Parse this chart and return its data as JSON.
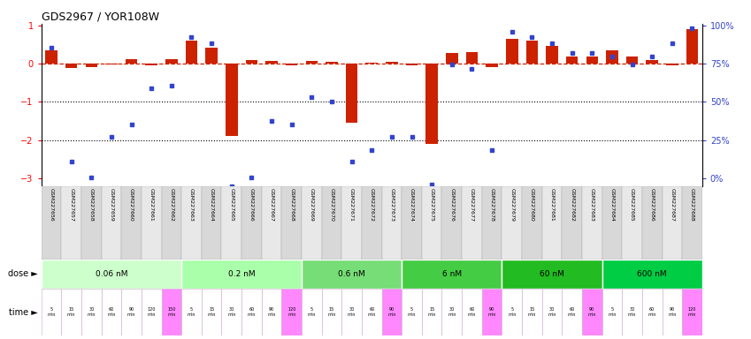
{
  "title": "GDS2967 / YOR108W",
  "samples": [
    "GSM227656",
    "GSM227657",
    "GSM227658",
    "GSM227659",
    "GSM227660",
    "GSM227661",
    "GSM227662",
    "GSM227663",
    "GSM227664",
    "GSM227665",
    "GSM227666",
    "GSM227667",
    "GSM227668",
    "GSM227669",
    "GSM227670",
    "GSM227671",
    "GSM227672",
    "GSM227673",
    "GSM227674",
    "GSM227675",
    "GSM227676",
    "GSM227677",
    "GSM227678",
    "GSM227679",
    "GSM227680",
    "GSM227681",
    "GSM227682",
    "GSM227683",
    "GSM227684",
    "GSM227685",
    "GSM227686",
    "GSM227687",
    "GSM227688"
  ],
  "log2_ratio": [
    0.35,
    -0.12,
    -0.08,
    -0.02,
    0.12,
    -0.05,
    0.13,
    0.6,
    0.42,
    -1.9,
    0.1,
    0.08,
    -0.05,
    0.08,
    0.05,
    -1.55,
    0.03,
    0.05,
    -0.05,
    -2.1,
    0.28,
    0.3,
    -0.08,
    0.65,
    0.6,
    0.48,
    0.2,
    0.18,
    0.35,
    0.18,
    0.1,
    -0.05,
    0.9
  ],
  "percentile": [
    85,
    15,
    5,
    30,
    38,
    60,
    62,
    92,
    88,
    0,
    5,
    40,
    38,
    55,
    52,
    15,
    22,
    30,
    30,
    1,
    75,
    72,
    22,
    95,
    92,
    88,
    82,
    82,
    80,
    75,
    80,
    88,
    97
  ],
  "doses": [
    {
      "label": "0.06 nM",
      "start": 0,
      "end": 7,
      "color": "#ccffcc"
    },
    {
      "label": "0.2 nM",
      "start": 7,
      "end": 13,
      "color": "#aaffaa"
    },
    {
      "label": "0.6 nM",
      "start": 13,
      "end": 18,
      "color": "#77dd77"
    },
    {
      "label": "6 nM",
      "start": 18,
      "end": 23,
      "color": "#44cc44"
    },
    {
      "label": "60 nM",
      "start": 23,
      "end": 28,
      "color": "#22bb22"
    },
    {
      "label": "600 nM",
      "start": 28,
      "end": 33,
      "color": "#00cc44"
    }
  ],
  "times": [
    "5\nmin",
    "15\nmin",
    "30\nmin",
    "60\nmin",
    "90\nmin",
    "120\nmin",
    "150\nmin",
    "5\nmin",
    "15\nmin",
    "30\nmin",
    "60\nmin",
    "90\nmin",
    "120\nmin",
    "5\nmin",
    "15\nmin",
    "30\nmin",
    "60\nmin",
    "90\nmin",
    "5\nmin",
    "15\nmin",
    "30\nmin",
    "60\nmin",
    "90\nmin",
    "5\nmin",
    "15\nmin",
    "30\nmin",
    "60\nmin",
    "90\nmin",
    "5\nmin",
    "30\nmin",
    "60\nmin",
    "90\nmin",
    "120\nmin"
  ],
  "time_colors": [
    "#ffffff",
    "#ffffff",
    "#ffffff",
    "#ffffff",
    "#ffffff",
    "#ffffff",
    "#ff88ff",
    "#ffffff",
    "#ffffff",
    "#ffffff",
    "#ffffff",
    "#ffffff",
    "#ff88ff",
    "#ffffff",
    "#ffffff",
    "#ffffff",
    "#ffffff",
    "#ff88ff",
    "#ffffff",
    "#ffffff",
    "#ffffff",
    "#ffffff",
    "#ff88ff",
    "#ffffff",
    "#ffffff",
    "#ffffff",
    "#ffffff",
    "#ff88ff",
    "#ffffff",
    "#ffffff",
    "#ffffff",
    "#ffffff",
    "#ff88ff"
  ],
  "bar_color": "#cc2200",
  "dot_color": "#3344cc",
  "dashed_line_color": "#cc2200",
  "ylim": [
    -3.2,
    1.05
  ],
  "yticks": [
    1,
    0,
    -1,
    -2,
    -3
  ],
  "right_ytick_labels": [
    "100%",
    "75%",
    "50%",
    "25%",
    "0%"
  ],
  "right_ytick_pos": [
    1.0,
    0.0,
    -1.0,
    -2.0,
    -3.0
  ]
}
